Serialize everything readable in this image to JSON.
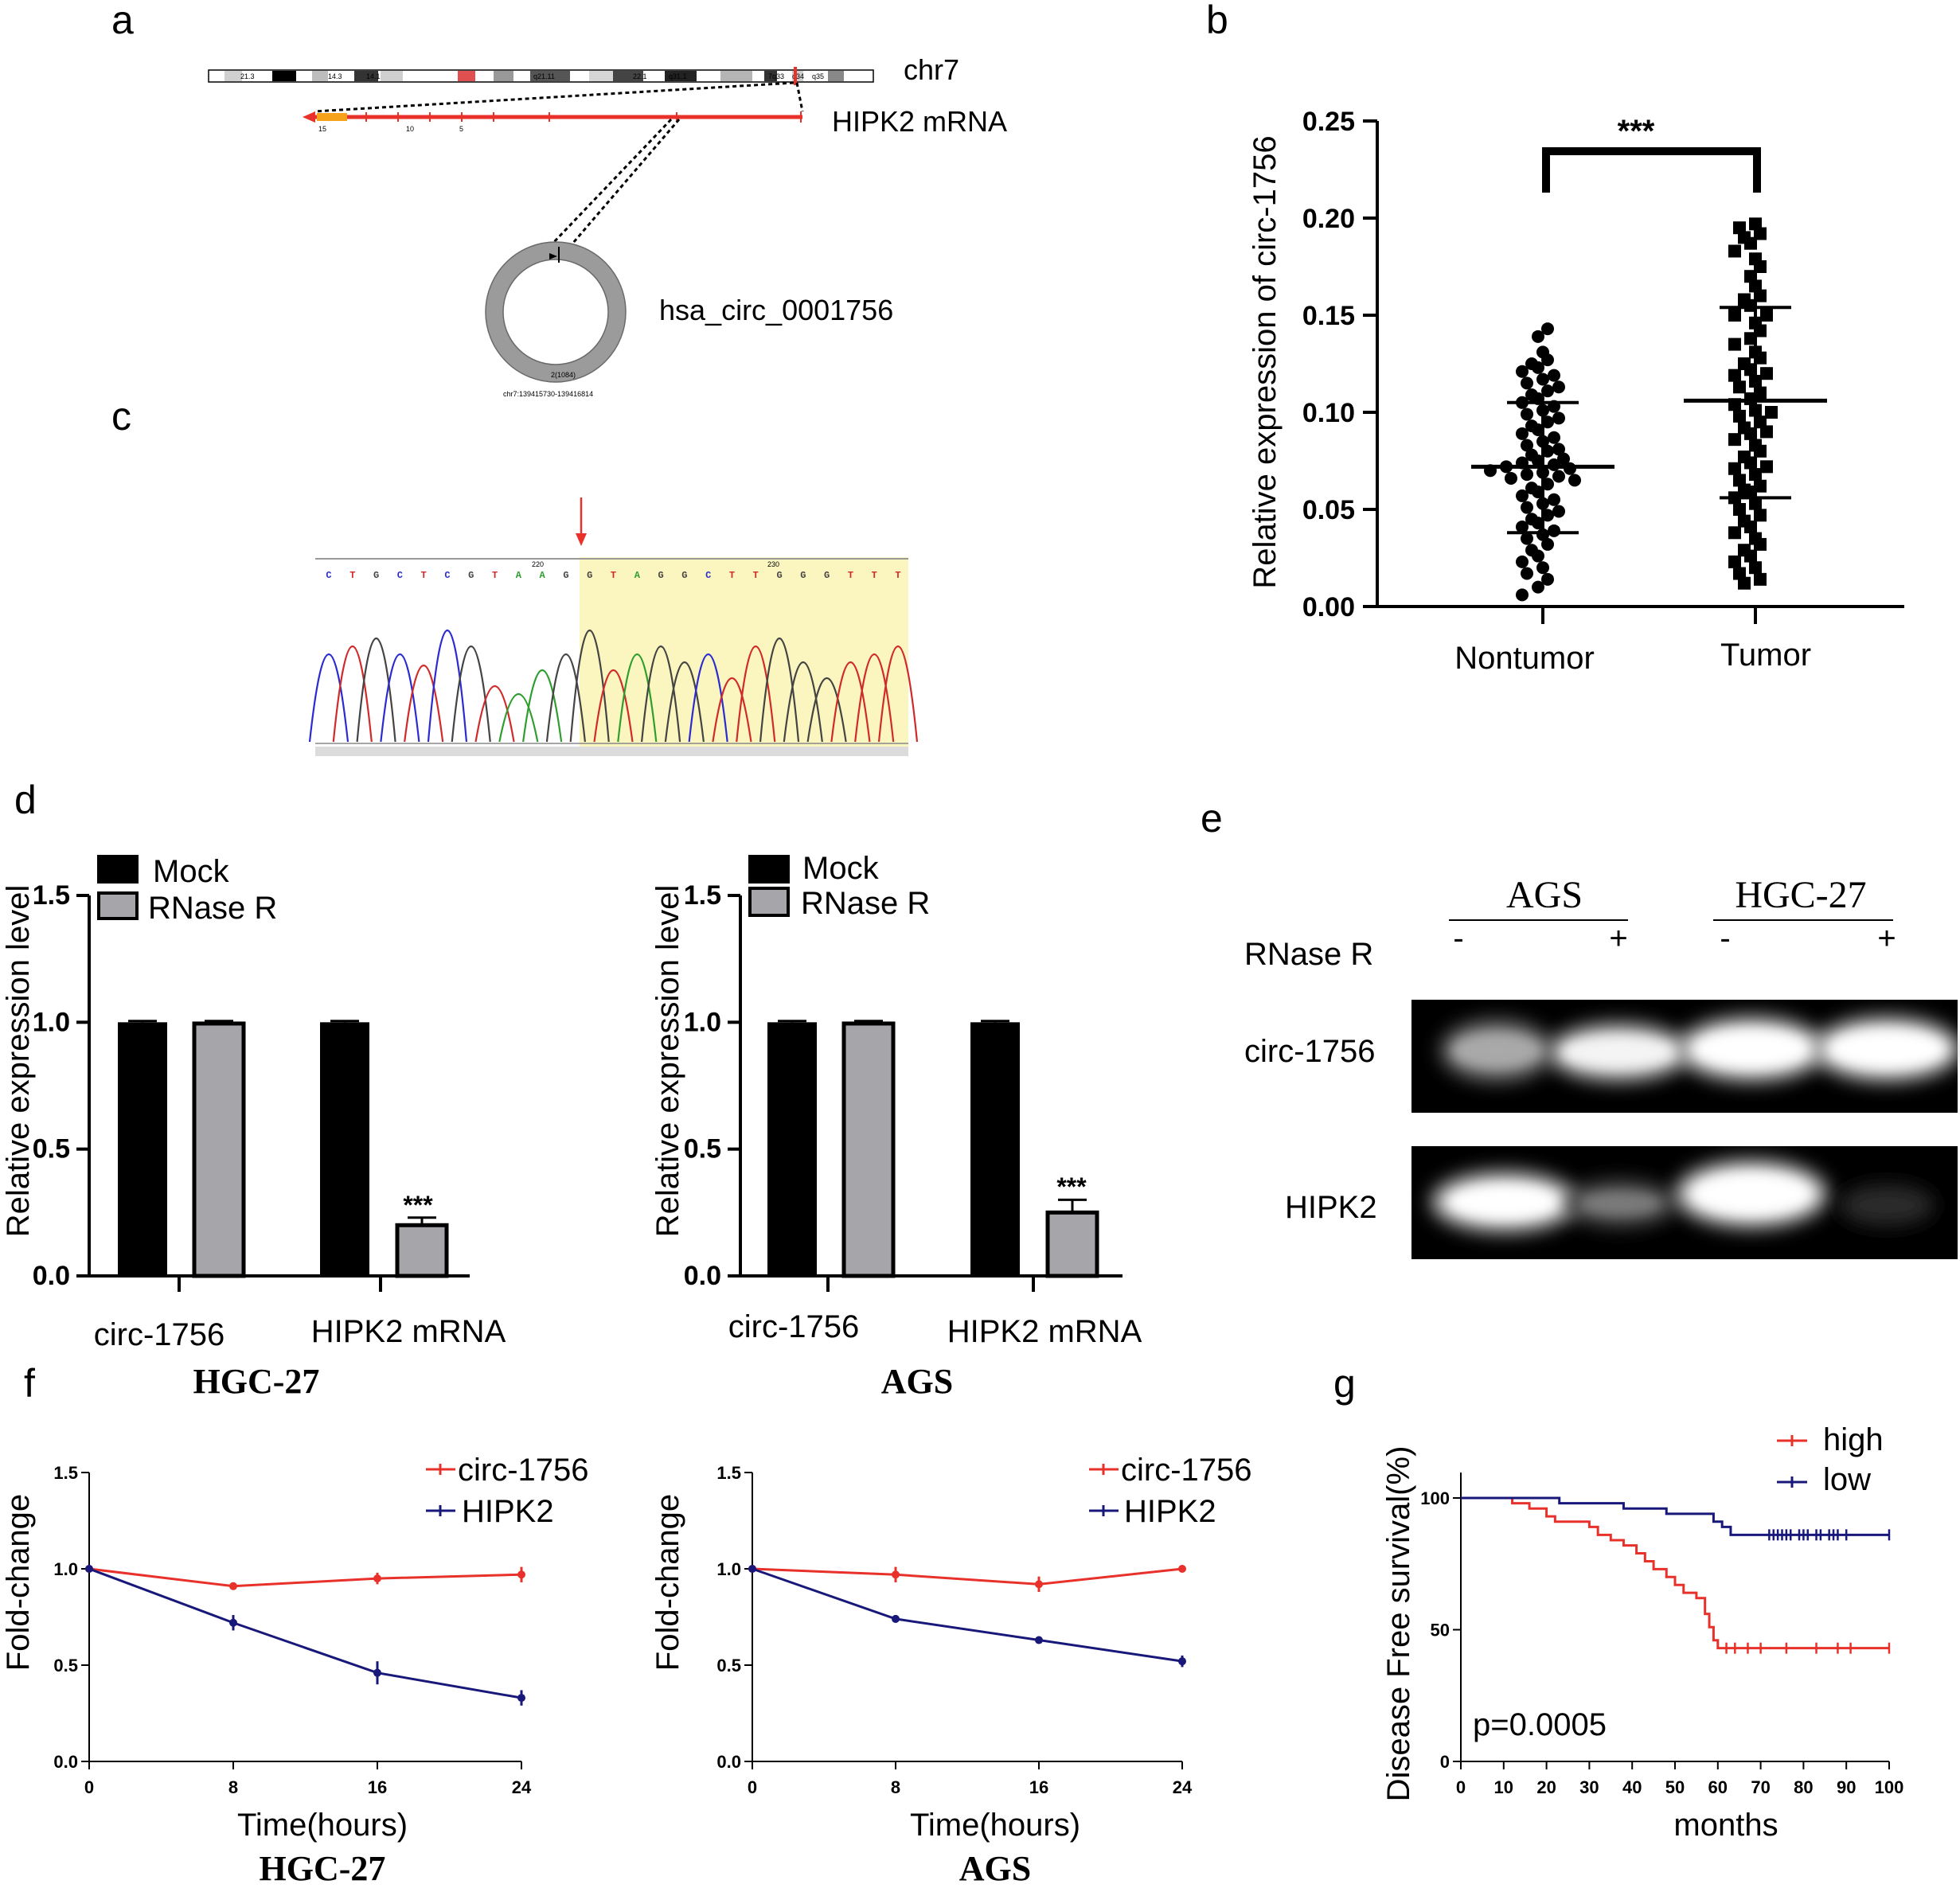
{
  "panel_letters": {
    "a": "a",
    "b": "b",
    "c": "c",
    "d": "d",
    "e": "e",
    "f": "f",
    "g": "g"
  },
  "panel_a": {
    "chromosome_label": "chr7",
    "mrna_label": "HIPK2 mRNA",
    "circ_label": "hsa_circ_0001756",
    "coord_label": "chr7:139415730-139416814",
    "circ_size": "2(1084)",
    "bands": [
      "21.3",
      "14.3",
      "14.1",
      "q21.11",
      "22.1",
      "q31.1",
      "7q33",
      "q34",
      "q35"
    ],
    "exon_numbers": [
      "15",
      "10",
      "5"
    ]
  },
  "panel_c": {
    "sequence": [
      "C",
      "T",
      "G",
      "C",
      "T",
      "C",
      "G",
      "T",
      "A",
      "A",
      "G",
      "G",
      "T",
      "A",
      "G",
      "G",
      "C",
      "T",
      "T",
      "G",
      "G",
      "G",
      "T",
      "T",
      "T"
    ],
    "positions": [
      "220",
      "230"
    ]
  },
  "panel_e": {
    "groups": [
      "AGS",
      "HGC-27"
    ],
    "treatment_label": "RNase R",
    "signs": [
      "-",
      "+",
      "-",
      "+"
    ],
    "rows": [
      "circ-1756",
      "HIPK2"
    ]
  },
  "colors": {
    "red": "#e8312a",
    "navy": "#18187a",
    "mock": "#000000",
    "rnase": "#a6a6aa"
  },
  "chart_data": [
    {
      "id": "b",
      "type": "scatter",
      "title": "",
      "ylabel": "Relative expression of circ-1756",
      "ylim": [
        0,
        0.25
      ],
      "yticks": [
        "0.00",
        "0.05",
        "0.10",
        "0.15",
        "0.20",
        "0.25"
      ],
      "categories": [
        "Nontumor",
        "Tumor"
      ],
      "significance": "***",
      "series": [
        {
          "name": "Nontumor",
          "marker": "circle",
          "mean": 0.072,
          "sd_low": 0.038,
          "sd_high": 0.105,
          "values": [
            0.143,
            0.139,
            0.131,
            0.127,
            0.125,
            0.123,
            0.121,
            0.119,
            0.117,
            0.115,
            0.113,
            0.111,
            0.109,
            0.107,
            0.105,
            0.103,
            0.101,
            0.099,
            0.097,
            0.095,
            0.093,
            0.091,
            0.089,
            0.087,
            0.085,
            0.083,
            0.081,
            0.08,
            0.078,
            0.076,
            0.075,
            0.074,
            0.073,
            0.072,
            0.071,
            0.07,
            0.069,
            0.068,
            0.067,
            0.066,
            0.065,
            0.063,
            0.061,
            0.059,
            0.057,
            0.055,
            0.053,
            0.051,
            0.049,
            0.047,
            0.045,
            0.043,
            0.041,
            0.039,
            0.037,
            0.035,
            0.032,
            0.029,
            0.026,
            0.023,
            0.02,
            0.017,
            0.014,
            0.01,
            0.006
          ]
        },
        {
          "name": "Tumor",
          "marker": "square",
          "mean": 0.106,
          "sd_low": 0.056,
          "sd_high": 0.154,
          "values": [
            0.197,
            0.195,
            0.192,
            0.19,
            0.187,
            0.183,
            0.179,
            0.175,
            0.17,
            0.165,
            0.16,
            0.158,
            0.155,
            0.15,
            0.146,
            0.142,
            0.138,
            0.135,
            0.131,
            0.128,
            0.125,
            0.122,
            0.119,
            0.116,
            0.113,
            0.11,
            0.107,
            0.104,
            0.101,
            0.098,
            0.095,
            0.092,
            0.089,
            0.086,
            0.083,
            0.08,
            0.077,
            0.074,
            0.071,
            0.068,
            0.065,
            0.062,
            0.059,
            0.056,
            0.053,
            0.05,
            0.047,
            0.044,
            0.041,
            0.038,
            0.035,
            0.032,
            0.029,
            0.026,
            0.023,
            0.02,
            0.017,
            0.014,
            0.012,
            0.1,
            0.09,
            0.072,
            0.06,
            0.15,
            0.12
          ]
        }
      ]
    },
    {
      "id": "d_hgc",
      "type": "bar",
      "title": "HGC-27",
      "ylabel": "Relative expression level",
      "ylim": [
        0,
        1.5
      ],
      "yticks": [
        "0.0",
        "0.5",
        "1.0",
        "1.5"
      ],
      "categories": [
        "circ-1756",
        "HIPK2 mRNA"
      ],
      "legend": [
        "Mock",
        "RNase R"
      ],
      "series": [
        {
          "name": "Mock",
          "values": [
            1.0,
            1.0
          ],
          "errors": [
            0.005,
            0.005
          ]
        },
        {
          "name": "RNase R",
          "values": [
            0.995,
            0.2
          ],
          "errors": [
            0.01,
            0.03
          ]
        }
      ],
      "annotations": [
        "***"
      ]
    },
    {
      "id": "d_ags",
      "type": "bar",
      "title": "AGS",
      "ylabel": "Relative expression level",
      "ylim": [
        0,
        1.5
      ],
      "yticks": [
        "0.0",
        "0.5",
        "1.0",
        "1.5"
      ],
      "categories": [
        "circ-1756",
        "HIPK2 mRNA"
      ],
      "legend": [
        "Mock",
        "RNase R"
      ],
      "series": [
        {
          "name": "Mock",
          "values": [
            1.0,
            1.0
          ],
          "errors": [
            0.005,
            0.005
          ]
        },
        {
          "name": "RNase R",
          "values": [
            0.995,
            0.25
          ],
          "errors": [
            0.01,
            0.05
          ]
        }
      ],
      "annotations": [
        "***"
      ]
    },
    {
      "id": "f_hgc",
      "type": "line",
      "title": "HGC-27",
      "xlabel": "Time(hours)",
      "ylabel": "Fold-change",
      "ylim": [
        0,
        1.5
      ],
      "yticks": [
        "0.0",
        "0.5",
        "1.0",
        "1.5"
      ],
      "x": [
        0,
        8,
        16,
        24
      ],
      "xticks": [
        "0",
        "8",
        "16",
        "24"
      ],
      "series": [
        {
          "name": "circ-1756",
          "values": [
            1.0,
            0.91,
            0.95,
            0.97
          ],
          "errors": [
            0,
            0.01,
            0.03,
            0.04
          ]
        },
        {
          "name": "HIPK2",
          "values": [
            1.0,
            0.72,
            0.46,
            0.33
          ],
          "errors": [
            0,
            0.04,
            0.06,
            0.04
          ]
        }
      ]
    },
    {
      "id": "f_ags",
      "type": "line",
      "title": "AGS",
      "xlabel": "Time(hours)",
      "ylabel": "Fold-change",
      "ylim": [
        0,
        1.5
      ],
      "yticks": [
        "0.0",
        "0.5",
        "1.0",
        "1.5"
      ],
      "x": [
        0,
        8,
        16,
        24
      ],
      "xticks": [
        "0",
        "8",
        "16",
        "24"
      ],
      "series": [
        {
          "name": "circ-1756",
          "values": [
            1.0,
            0.97,
            0.92,
            1.0
          ],
          "errors": [
            0,
            0.04,
            0.04,
            0
          ]
        },
        {
          "name": "HIPK2",
          "values": [
            1.0,
            0.74,
            0.63,
            0.52
          ],
          "errors": [
            0,
            0.02,
            0.01,
            0.03
          ]
        }
      ]
    },
    {
      "id": "g",
      "type": "line",
      "title": "",
      "xlabel": "months",
      "ylabel": "Disease Free survival(%)",
      "xlim": [
        0,
        100
      ],
      "ylim": [
        0,
        100
      ],
      "xticks": [
        "0",
        "10",
        "20",
        "30",
        "40",
        "50",
        "60",
        "70",
        "80",
        "90",
        "100"
      ],
      "yticks": [
        "0",
        "50",
        "100"
      ],
      "annotation": "p=0.0005",
      "series": [
        {
          "name": "high",
          "steps": [
            [
              0,
              100
            ],
            [
              10,
              100
            ],
            [
              12,
              98
            ],
            [
              16,
              96
            ],
            [
              20,
              93
            ],
            [
              22,
              91
            ],
            [
              30,
              89
            ],
            [
              32,
              86
            ],
            [
              35,
              84
            ],
            [
              38,
              82
            ],
            [
              41,
              79
            ],
            [
              43,
              76
            ],
            [
              45,
              73
            ],
            [
              48,
              70
            ],
            [
              50,
              67
            ],
            [
              52,
              64
            ],
            [
              55,
              62
            ],
            [
              57,
              56
            ],
            [
              58,
              51
            ],
            [
              59,
              46
            ],
            [
              60,
              43
            ],
            [
              100,
              43
            ]
          ],
          "censor": [
            62,
            64,
            67,
            70,
            76,
            83,
            88,
            91,
            100
          ]
        },
        {
          "name": "low",
          "steps": [
            [
              0,
              100
            ],
            [
              20,
              100
            ],
            [
              23,
              98
            ],
            [
              35,
              98
            ],
            [
              38,
              96
            ],
            [
              46,
              96
            ],
            [
              48,
              94
            ],
            [
              57,
              94
            ],
            [
              59,
              91
            ],
            [
              61,
              89
            ],
            [
              63,
              86
            ],
            [
              100,
              86
            ]
          ],
          "censor": [
            72,
            73,
            74,
            75,
            76,
            77,
            79,
            80,
            81,
            83,
            84,
            86,
            87,
            88,
            90,
            100
          ]
        }
      ]
    }
  ]
}
